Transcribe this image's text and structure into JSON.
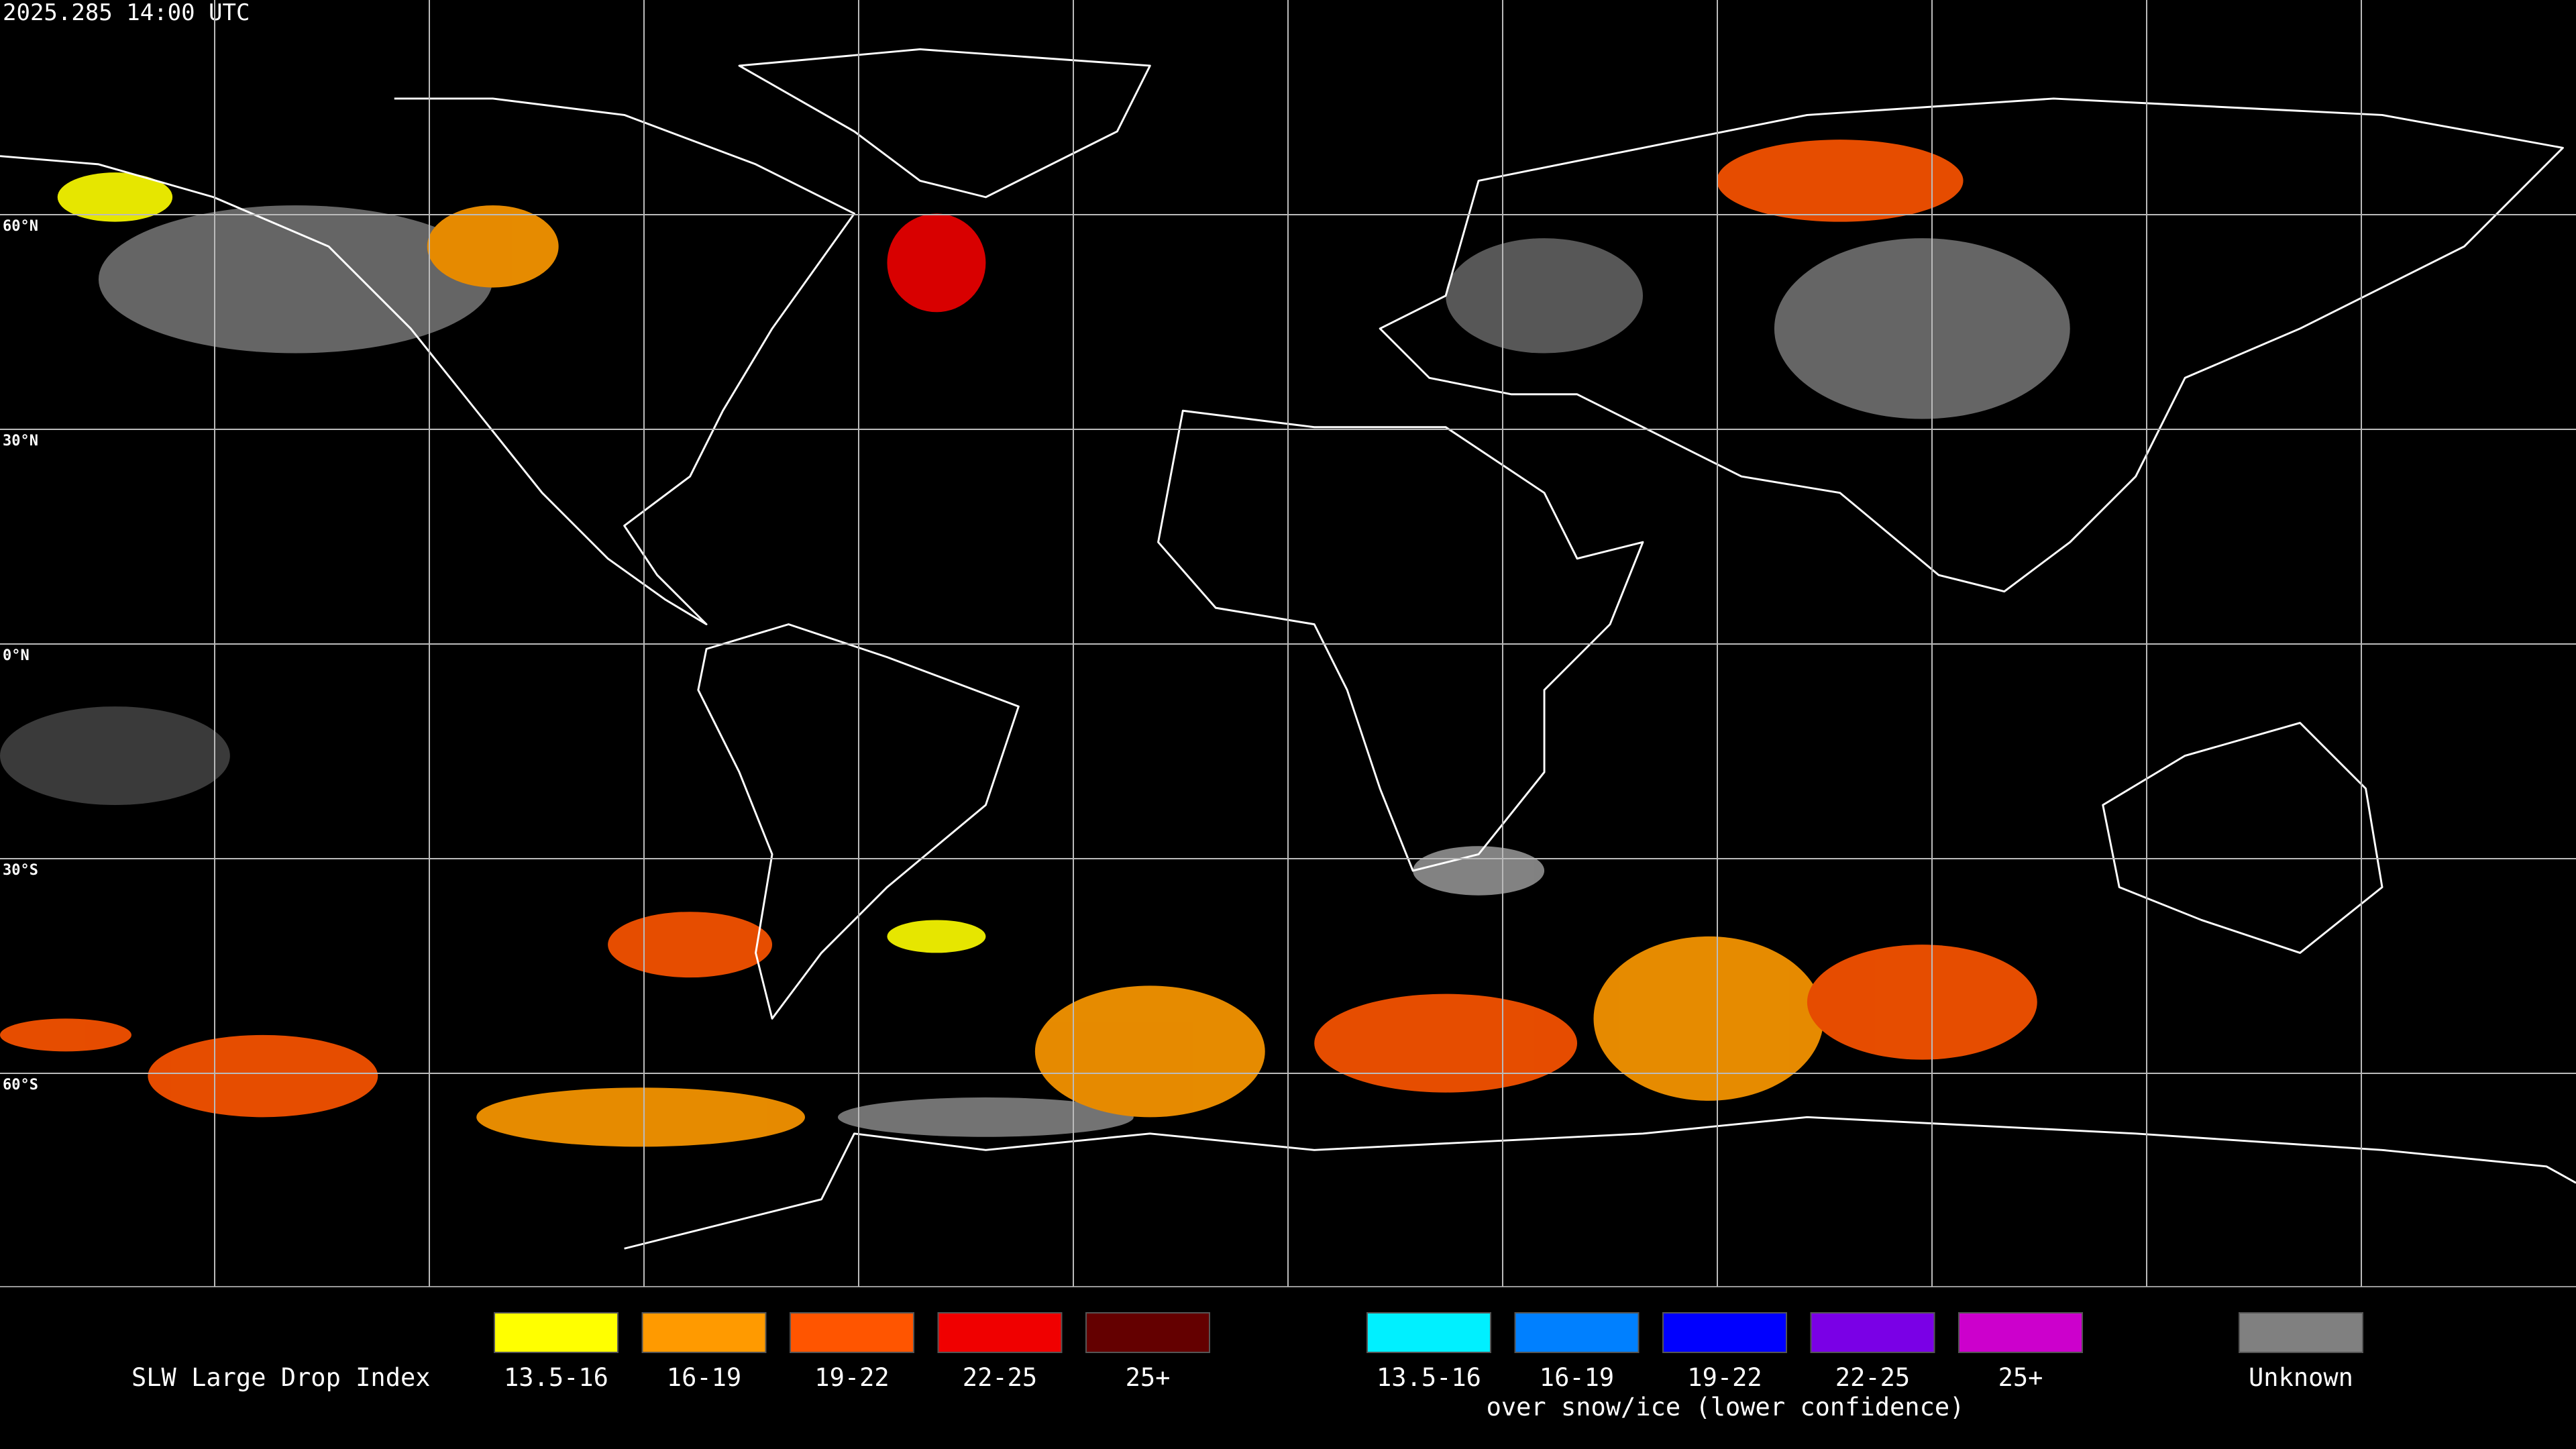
{
  "header": {
    "timestamp": "2025.285 14:00 UTC"
  },
  "map": {
    "latitude_labels": [
      "60°N",
      "30°N",
      "0°N",
      "30°S",
      "60°S"
    ]
  },
  "legend": {
    "title": "SLW Large Drop Index",
    "liquid": [
      {
        "label": "13.5-16",
        "color": "#ffff00"
      },
      {
        "label": "16-19",
        "color": "#ff9a00"
      },
      {
        "label": "19-22",
        "color": "#ff5500"
      },
      {
        "label": "22-25",
        "color": "#f00000"
      },
      {
        "label": "25+",
        "color": "#640000"
      }
    ],
    "snow_ice": [
      {
        "label": "13.5-16",
        "color": "#00f0ff"
      },
      {
        "label": "16-19",
        "color": "#0080ff"
      },
      {
        "label": "19-22",
        "color": "#0000ff"
      },
      {
        "label": "22-25",
        "color": "#7a00e6"
      },
      {
        "label": "25+",
        "color": "#cc00cc"
      }
    ],
    "snow_ice_caption": "over snow/ice (lower confidence)",
    "unknown": {
      "label": "Unknown",
      "color": "#808080"
    }
  }
}
